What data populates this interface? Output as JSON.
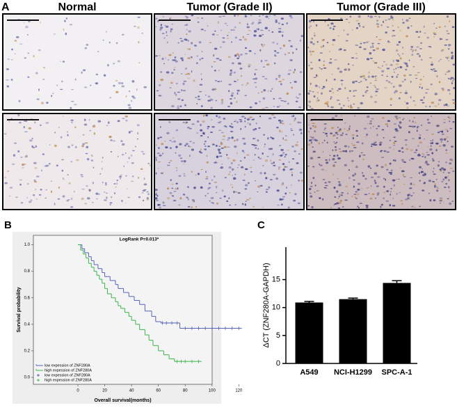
{
  "panel_labels": [
    "A",
    "B",
    "C"
  ],
  "histology": {
    "titles": [
      "Normal",
      "Tumor (Grade II)",
      "Tumor (Grade III)"
    ]
  },
  "chart_data": [
    {
      "type": "line",
      "step": true,
      "annotation": "LogRank P=0.013*",
      "xlabel": "Overall survival(months)",
      "ylabel": "Survival probability",
      "xlim": [
        0,
        125
      ],
      "xticks": [
        0,
        20,
        40,
        60,
        80,
        100,
        120
      ],
      "ylim": [
        0,
        1.05
      ],
      "yticks": [
        {
          "value": 0,
          "label": "0.0"
        },
        0.2,
        0.4,
        0.6,
        0.8,
        {
          "value": 1,
          "label": "1.0"
        }
      ],
      "series": [
        {
          "name": "low expession of ZNF280A",
          "color": "#5563b8",
          "marker": "step",
          "x": [
            0,
            3,
            5,
            8,
            10,
            12,
            15,
            18,
            20,
            24,
            28,
            30,
            34,
            38,
            42,
            46,
            50,
            55,
            58,
            62,
            76,
            122
          ],
          "values": [
            1.0,
            0.97,
            0.94,
            0.91,
            0.88,
            0.85,
            0.82,
            0.79,
            0.76,
            0.73,
            0.7,
            0.67,
            0.64,
            0.61,
            0.58,
            0.55,
            0.5,
            0.46,
            0.42,
            0.41,
            0.37,
            0.37
          ]
        },
        {
          "name": "high expession of ZNF280A",
          "color": "#3cb44b",
          "marker": "step",
          "x": [
            0,
            2,
            4,
            6,
            8,
            10,
            12,
            14,
            16,
            18,
            20,
            22,
            25,
            28,
            30,
            32,
            35,
            38,
            40,
            43,
            46,
            50,
            53,
            56,
            60,
            64,
            68,
            72,
            92
          ],
          "values": [
            1.0,
            0.96,
            0.93,
            0.9,
            0.86,
            0.83,
            0.8,
            0.77,
            0.74,
            0.71,
            0.67,
            0.63,
            0.6,
            0.57,
            0.54,
            0.52,
            0.49,
            0.46,
            0.43,
            0.4,
            0.36,
            0.32,
            0.28,
            0.24,
            0.2,
            0.17,
            0.14,
            0.12,
            0.12
          ]
        },
        {
          "name": "low expession of ZNF280A",
          "color": "#5563b8",
          "marker": "censor",
          "x": [
            63,
            66,
            70,
            74,
            80,
            85,
            90,
            95,
            100,
            105,
            110,
            115,
            120
          ],
          "values": [
            0.41,
            0.41,
            0.41,
            0.41,
            0.37,
            0.37,
            0.37,
            0.37,
            0.37,
            0.37,
            0.37,
            0.37,
            0.37
          ]
        },
        {
          "name": "high expession of ZNF280A",
          "color": "#3cb44b",
          "marker": "censor",
          "x": [
            74,
            77,
            80,
            85,
            90
          ],
          "values": [
            0.12,
            0.12,
            0.12,
            0.12,
            0.12
          ]
        }
      ]
    },
    {
      "type": "bar",
      "ylabel": "ΔCT (ZNF280A-GAPDH)",
      "categories": [
        "A549",
        "NCI-H1299",
        "SPC-A-1"
      ],
      "values": [
        10.9,
        11.5,
        14.4
      ],
      "errors": [
        0.2,
        0.2,
        0.4
      ],
      "color": "#000000",
      "ylim": [
        0,
        20.8
      ],
      "yticks": [
        0,
        5,
        10,
        15
      ]
    }
  ]
}
